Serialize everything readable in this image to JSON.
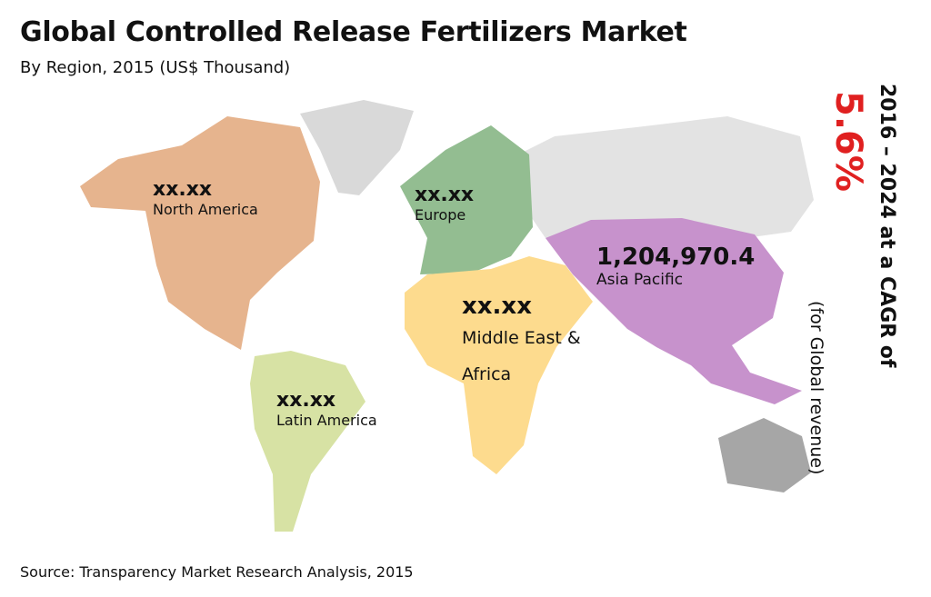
{
  "header": {
    "title": "Global Controlled Release Fertilizers Market",
    "subtitle": "By Region, 2015 (US$ Thousand)"
  },
  "regions": [
    {
      "value": "xx.xx",
      "name": "North America"
    },
    {
      "value": "xx.xx",
      "name": "Europe"
    },
    {
      "value": "1,204,970.4",
      "name": "Asia Pacific"
    },
    {
      "value": "xx.xx",
      "name": "Middle East & Africa"
    },
    {
      "value": "xx.xx",
      "name": "Latin America"
    }
  ],
  "cagr": {
    "period": "2016 – 2024 at a CAGR of",
    "rate": "5.6%",
    "note": "(for Global revenue)"
  },
  "source": "Source: Transparency Market Research Analysis, 2015"
}
